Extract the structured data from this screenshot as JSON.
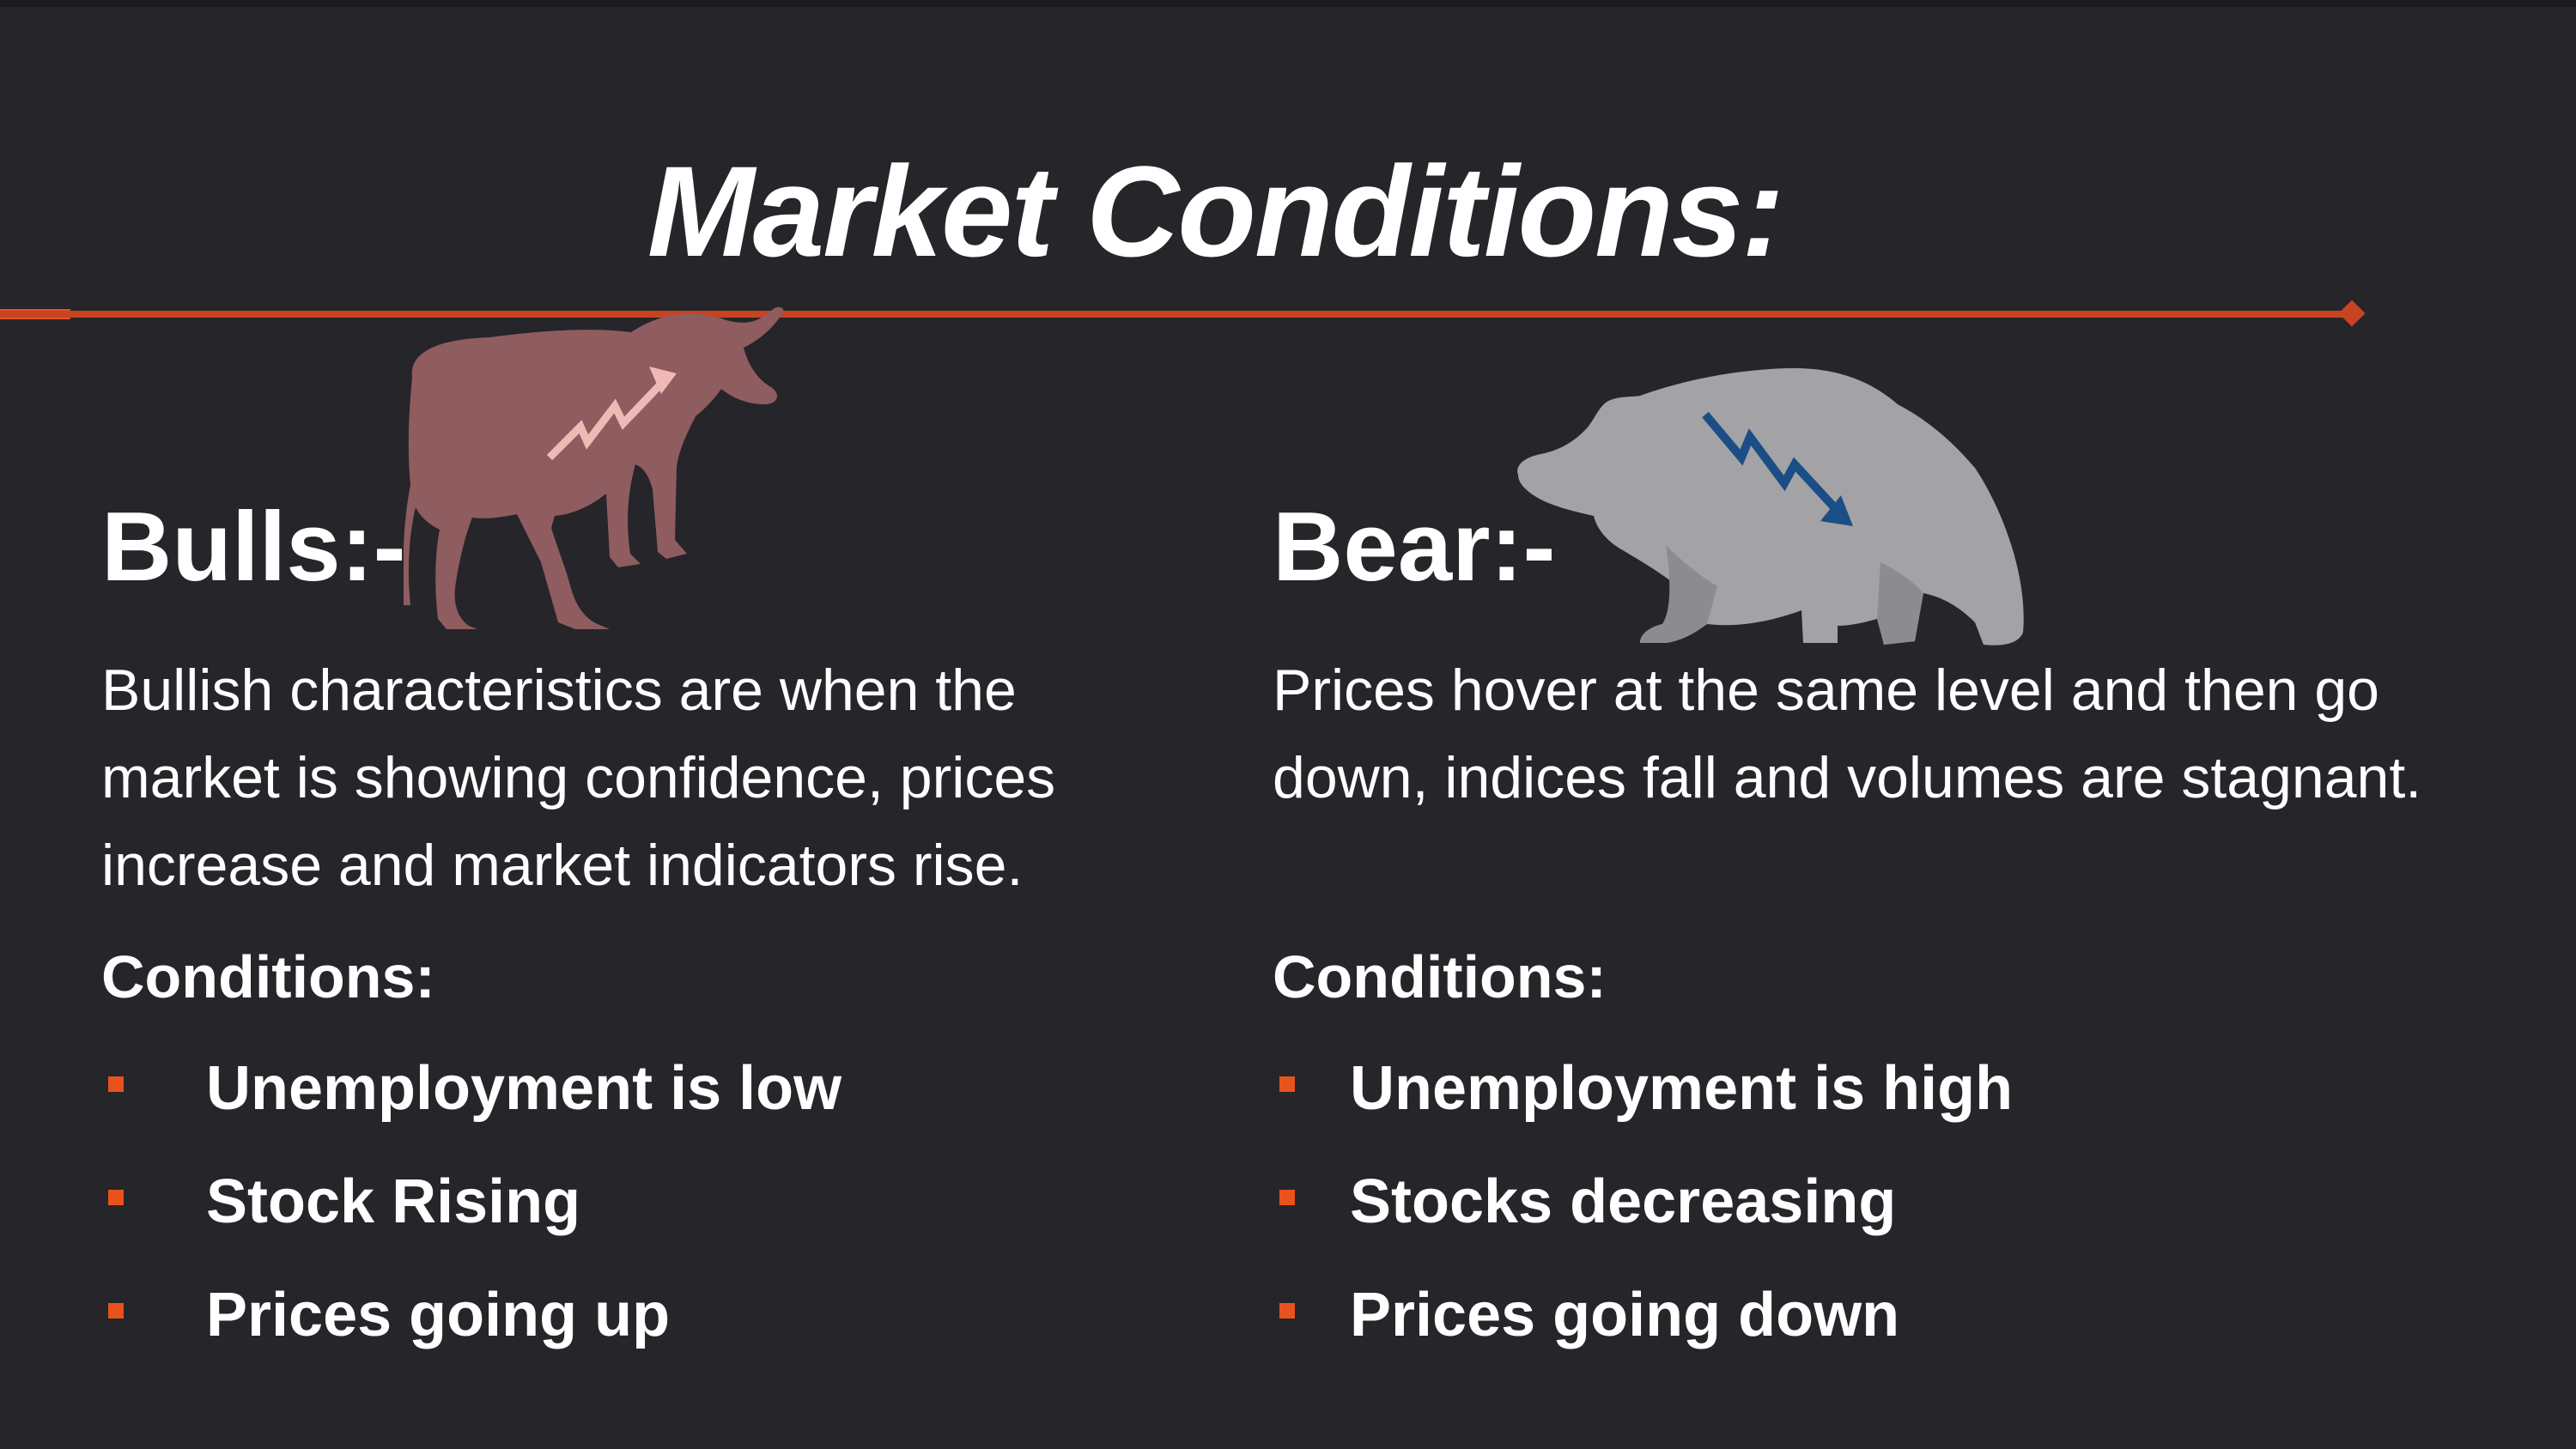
{
  "slide": {
    "title": "Market Conditions:",
    "accent_color": "#c8431f",
    "background_color": "#25252a"
  },
  "bull": {
    "heading": "Bulls:-",
    "description": "Bullish characteristics are when the market is showing confidence, prices increase and market indicators rise.",
    "conditions_title": "Conditions:",
    "conditions": [
      "Unemployment is low",
      "Stock Rising",
      "Prices going up"
    ],
    "icon": "bull-with-rising-arrow-icon",
    "icon_color": "#8f5c5f"
  },
  "bear": {
    "heading": "Bear:-",
    "description": "Prices hover at the same level and then go down, indices fall and volumes are stagnant.",
    "conditions_title": "Conditions:",
    "conditions": [
      "Unemployment is high",
      "Stocks decreasing",
      "Prices going down"
    ],
    "icon": "bear-with-falling-arrow-icon",
    "icon_color": "#a3a3a6"
  }
}
